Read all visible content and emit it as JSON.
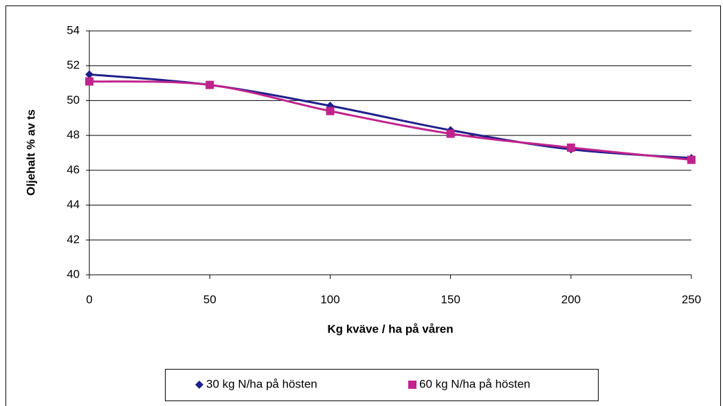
{
  "chart_data": {
    "type": "scatter",
    "xlabel": "Kg kväve / ha på våren",
    "ylabel": "Oljehalt % av ts",
    "x": [
      0,
      50,
      100,
      150,
      200,
      250
    ],
    "series": [
      {
        "name": "30 kg N/ha på hösten",
        "color": "#1f1f8c",
        "marker": "diamond",
        "values": [
          51.5,
          50.9,
          49.7,
          48.3,
          47.2,
          46.7
        ]
      },
      {
        "name": "60 kg N/ha på hösten",
        "color": "#c0238c",
        "marker": "square",
        "values": [
          51.1,
          50.9,
          49.4,
          48.1,
          47.3,
          46.6
        ]
      }
    ],
    "xlim": [
      0,
      250
    ],
    "xticks": [
      0,
      50,
      100,
      150,
      200,
      250
    ],
    "ylim": [
      40,
      54
    ],
    "yticks": [
      40,
      42,
      44,
      46,
      48,
      50,
      52,
      54
    ],
    "grid": true,
    "trendline": true,
    "legend": "bottom"
  }
}
